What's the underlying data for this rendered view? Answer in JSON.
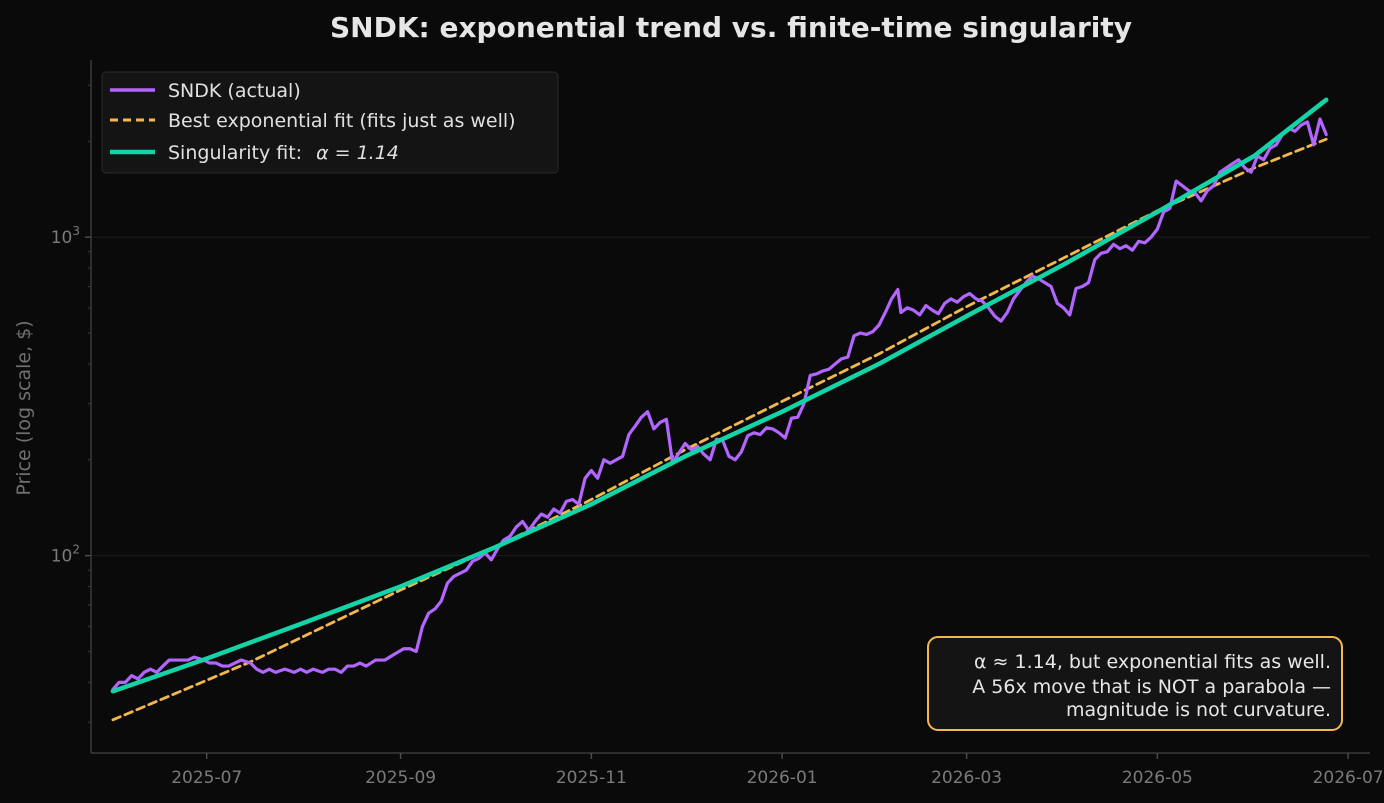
{
  "chart_data": {
    "type": "line",
    "title": "SNDK: exponential trend vs. finite-time singularity",
    "ylabel": "Price (log scale, $)",
    "xlabel": "",
    "yscale": "log",
    "xlim": [
      "2025-05-25",
      "2026-07-08"
    ],
    "ylim": [
      24,
      3600
    ],
    "grid": true,
    "legend_position": "top-left",
    "x_ticks": [
      "2025-07",
      "2025-09",
      "2025-11",
      "2026-01",
      "2026-03",
      "2026-05",
      "2026-07"
    ],
    "y_ticks": [
      {
        "value": 100,
        "base": "10",
        "exp": "2"
      },
      {
        "value": 1000,
        "base": "10",
        "exp": "3"
      }
    ],
    "series": [
      {
        "name": "SNDK (actual)",
        "color": "#b266ff",
        "style": "solid",
        "points": [
          [
            "2025-06-01",
            38
          ],
          [
            "2025-06-03",
            40
          ],
          [
            "2025-06-05",
            40
          ],
          [
            "2025-06-07",
            42
          ],
          [
            "2025-06-09",
            41
          ],
          [
            "2025-06-11",
            43
          ],
          [
            "2025-06-13",
            44
          ],
          [
            "2025-06-15",
            43
          ],
          [
            "2025-06-17",
            45
          ],
          [
            "2025-06-19",
            47
          ],
          [
            "2025-06-21",
            47
          ],
          [
            "2025-06-23",
            47
          ],
          [
            "2025-06-25",
            47
          ],
          [
            "2025-06-27",
            48
          ],
          [
            "2025-06-30",
            47
          ],
          [
            "2025-07-02",
            46
          ],
          [
            "2025-07-04",
            46
          ],
          [
            "2025-07-06",
            45
          ],
          [
            "2025-07-08",
            45
          ],
          [
            "2025-07-10",
            46
          ],
          [
            "2025-07-12",
            47
          ],
          [
            "2025-07-15",
            46
          ],
          [
            "2025-07-17",
            44
          ],
          [
            "2025-07-19",
            43
          ],
          [
            "2025-07-21",
            44
          ],
          [
            "2025-07-23",
            43
          ],
          [
            "2025-07-26",
            44
          ],
          [
            "2025-07-29",
            43
          ],
          [
            "2025-07-31",
            44
          ],
          [
            "2025-08-02",
            43
          ],
          [
            "2025-08-04",
            44
          ],
          [
            "2025-08-07",
            43
          ],
          [
            "2025-08-09",
            44
          ],
          [
            "2025-08-11",
            44
          ],
          [
            "2025-08-13",
            43
          ],
          [
            "2025-08-15",
            45
          ],
          [
            "2025-08-17",
            45
          ],
          [
            "2025-08-19",
            46
          ],
          [
            "2025-08-21",
            45
          ],
          [
            "2025-08-24",
            47
          ],
          [
            "2025-08-27",
            47
          ],
          [
            "2025-08-30",
            49
          ],
          [
            "2025-09-02",
            51
          ],
          [
            "2025-09-04",
            51
          ],
          [
            "2025-09-06",
            50
          ],
          [
            "2025-09-08",
            60
          ],
          [
            "2025-09-10",
            66
          ],
          [
            "2025-09-12",
            68
          ],
          [
            "2025-09-14",
            72
          ],
          [
            "2025-09-16",
            82
          ],
          [
            "2025-09-18",
            86
          ],
          [
            "2025-09-20",
            88
          ],
          [
            "2025-09-22",
            90
          ],
          [
            "2025-09-24",
            96
          ],
          [
            "2025-09-26",
            98
          ],
          [
            "2025-09-28",
            102
          ],
          [
            "2025-09-30",
            97
          ],
          [
            "2025-10-02",
            105
          ],
          [
            "2025-10-04",
            112
          ],
          [
            "2025-10-06",
            115
          ],
          [
            "2025-10-08",
            123
          ],
          [
            "2025-10-10",
            128
          ],
          [
            "2025-10-12",
            120
          ],
          [
            "2025-10-14",
            128
          ],
          [
            "2025-10-16",
            135
          ],
          [
            "2025-10-18",
            132
          ],
          [
            "2025-10-20",
            140
          ],
          [
            "2025-10-22",
            136
          ],
          [
            "2025-10-24",
            148
          ],
          [
            "2025-10-26",
            150
          ],
          [
            "2025-10-28",
            145
          ],
          [
            "2025-10-30",
            175
          ],
          [
            "2025-11-01",
            185
          ],
          [
            "2025-11-03",
            175
          ],
          [
            "2025-11-05",
            200
          ],
          [
            "2025-11-07",
            195
          ],
          [
            "2025-11-09",
            200
          ],
          [
            "2025-11-11",
            205
          ],
          [
            "2025-11-13",
            240
          ],
          [
            "2025-11-15",
            255
          ],
          [
            "2025-11-17",
            272
          ],
          [
            "2025-11-19",
            283
          ],
          [
            "2025-11-21",
            250
          ],
          [
            "2025-11-23",
            262
          ],
          [
            "2025-11-25",
            268
          ],
          [
            "2025-11-27",
            195
          ],
          [
            "2025-11-29",
            210
          ],
          [
            "2025-12-01",
            225
          ],
          [
            "2025-12-03",
            215
          ],
          [
            "2025-12-05",
            220
          ],
          [
            "2025-12-07",
            208
          ],
          [
            "2025-12-09",
            200
          ],
          [
            "2025-12-11",
            232
          ],
          [
            "2025-12-13",
            230
          ],
          [
            "2025-12-15",
            205
          ],
          [
            "2025-12-17",
            200
          ],
          [
            "2025-12-19",
            212
          ],
          [
            "2025-12-21",
            238
          ],
          [
            "2025-12-23",
            243
          ],
          [
            "2025-12-25",
            240
          ],
          [
            "2025-12-27",
            252
          ],
          [
            "2025-12-29",
            250
          ],
          [
            "2025-12-31",
            243
          ],
          [
            "2026-01-02",
            234
          ],
          [
            "2026-01-04",
            270
          ],
          [
            "2026-01-06",
            272
          ],
          [
            "2026-01-08",
            300
          ],
          [
            "2026-01-10",
            368
          ],
          [
            "2026-01-12",
            372
          ],
          [
            "2026-01-14",
            380
          ],
          [
            "2026-01-16",
            385
          ],
          [
            "2026-01-18",
            400
          ],
          [
            "2026-01-20",
            415
          ],
          [
            "2026-01-22",
            420
          ],
          [
            "2026-01-24",
            490
          ],
          [
            "2026-01-26",
            500
          ],
          [
            "2026-01-28",
            495
          ],
          [
            "2026-01-30",
            505
          ],
          [
            "2026-02-01",
            530
          ],
          [
            "2026-02-03",
            580
          ],
          [
            "2026-02-05",
            640
          ],
          [
            "2026-02-07",
            685
          ],
          [
            "2026-02-08",
            580
          ],
          [
            "2026-02-10",
            600
          ],
          [
            "2026-02-12",
            590
          ],
          [
            "2026-02-14",
            570
          ],
          [
            "2026-02-16",
            610
          ],
          [
            "2026-02-18",
            590
          ],
          [
            "2026-02-20",
            575
          ],
          [
            "2026-02-22",
            620
          ],
          [
            "2026-02-24",
            640
          ],
          [
            "2026-02-26",
            625
          ],
          [
            "2026-02-28",
            650
          ],
          [
            "2026-03-02",
            665
          ],
          [
            "2026-03-04",
            640
          ],
          [
            "2026-03-06",
            630
          ],
          [
            "2026-03-08",
            600
          ],
          [
            "2026-03-10",
            565
          ],
          [
            "2026-03-12",
            545
          ],
          [
            "2026-03-14",
            580
          ],
          [
            "2026-03-16",
            640
          ],
          [
            "2026-03-18",
            680
          ],
          [
            "2026-03-20",
            720
          ],
          [
            "2026-03-22",
            755
          ],
          [
            "2026-03-24",
            740
          ],
          [
            "2026-03-26",
            720
          ],
          [
            "2026-03-28",
            700
          ],
          [
            "2026-03-30",
            620
          ],
          [
            "2026-04-01",
            600
          ],
          [
            "2026-04-03",
            570
          ],
          [
            "2026-04-05",
            690
          ],
          [
            "2026-04-07",
            700
          ],
          [
            "2026-04-09",
            720
          ],
          [
            "2026-04-11",
            850
          ],
          [
            "2026-04-13",
            890
          ],
          [
            "2026-04-15",
            900
          ],
          [
            "2026-04-17",
            950
          ],
          [
            "2026-04-19",
            920
          ],
          [
            "2026-04-21",
            940
          ],
          [
            "2026-04-23",
            910
          ],
          [
            "2026-04-25",
            970
          ],
          [
            "2026-04-27",
            960
          ],
          [
            "2026-04-29",
            1000
          ],
          [
            "2026-05-01",
            1060
          ],
          [
            "2026-05-03",
            1200
          ],
          [
            "2026-05-05",
            1230
          ],
          [
            "2026-05-07",
            1500
          ],
          [
            "2026-05-09",
            1450
          ],
          [
            "2026-05-11",
            1400
          ],
          [
            "2026-05-13",
            1380
          ],
          [
            "2026-05-15",
            1300
          ],
          [
            "2026-05-17",
            1400
          ],
          [
            "2026-05-19",
            1450
          ],
          [
            "2026-05-21",
            1600
          ],
          [
            "2026-05-23",
            1650
          ],
          [
            "2026-05-25",
            1700
          ],
          [
            "2026-05-27",
            1750
          ],
          [
            "2026-05-29",
            1650
          ],
          [
            "2026-05-31",
            1600
          ],
          [
            "2026-06-02",
            1800
          ],
          [
            "2026-06-04",
            1750
          ],
          [
            "2026-06-06",
            1900
          ],
          [
            "2026-06-08",
            1950
          ],
          [
            "2026-06-10",
            2100
          ],
          [
            "2026-06-12",
            2200
          ],
          [
            "2026-06-14",
            2150
          ],
          [
            "2026-06-16",
            2250
          ],
          [
            "2026-06-18",
            2300
          ],
          [
            "2026-06-20",
            1950
          ],
          [
            "2026-06-22",
            2350
          ],
          [
            "2026-06-24",
            2100
          ]
        ]
      },
      {
        "name": "Best exponential fit (fits just as well)",
        "color": "#f2b84b",
        "style": "dashed",
        "points": [
          [
            "2025-06-01",
            30.5
          ],
          [
            "2025-07-15",
            46.4
          ],
          [
            "2025-09-01",
            78
          ],
          [
            "2025-10-01",
            106
          ],
          [
            "2025-11-01",
            150
          ],
          [
            "2025-12-01",
            215
          ],
          [
            "2026-01-01",
            305
          ],
          [
            "2026-02-01",
            430
          ],
          [
            "2026-03-01",
            605
          ],
          [
            "2026-04-01",
            860
          ],
          [
            "2026-05-01",
            1210
          ],
          [
            "2026-06-01",
            1650
          ],
          [
            "2026-06-24",
            2030
          ]
        ]
      },
      {
        "name": "Singularity fit:",
        "name_suffix": "α = 1.14",
        "color": "#12d4a7",
        "style": "solid",
        "points": [
          [
            "2025-06-01",
            37.5
          ],
          [
            "2025-07-01",
            47.5
          ],
          [
            "2025-08-01",
            61.5
          ],
          [
            "2025-09-01",
            80
          ],
          [
            "2025-10-01",
            106
          ],
          [
            "2025-11-01",
            145
          ],
          [
            "2025-12-01",
            205
          ],
          [
            "2026-01-01",
            283
          ],
          [
            "2026-02-01",
            400
          ],
          [
            "2026-03-01",
            565
          ],
          [
            "2026-04-01",
            820
          ],
          [
            "2026-05-01",
            1200
          ],
          [
            "2026-06-01",
            1800
          ],
          [
            "2026-06-24",
            2700
          ]
        ]
      }
    ],
    "annotation": {
      "lines": [
        "α ≈ 1.14, but exponential fits as well.",
        "A 56x move that is NOT a parabola —",
        "magnitude is not curvature."
      ],
      "border_color": "#f2b84b",
      "position": "bottom-right"
    }
  }
}
